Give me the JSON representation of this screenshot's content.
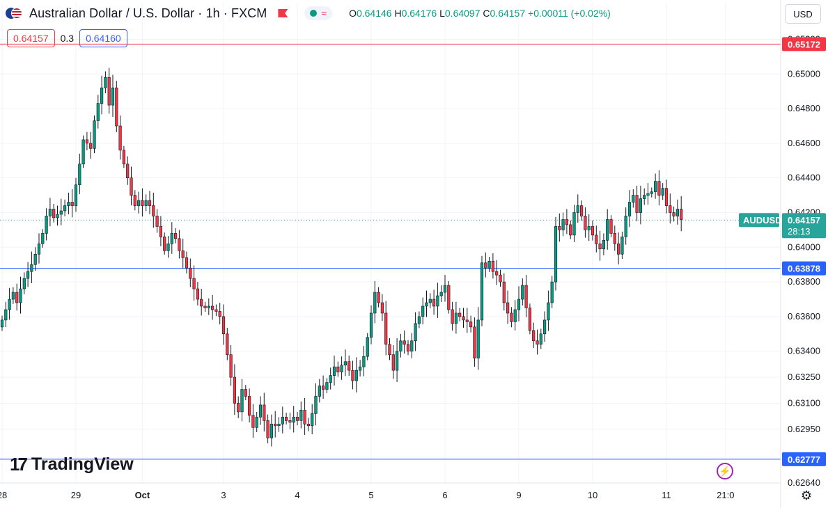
{
  "header": {
    "title": "Australian Dollar / U.S. Dollar · 1h · FXCM",
    "ohlc": {
      "open_label": "O",
      "open": "0.64146",
      "high_label": "H",
      "high": "0.64176",
      "low_label": "L",
      "low": "0.64097",
      "close_label": "C",
      "close": "0.64157",
      "change": "+0.00011 (+0.02%)"
    }
  },
  "trade": {
    "bid": "0.64157",
    "spread": "0.3",
    "ask": "0.64160"
  },
  "currency_button": "USD",
  "logo_text": "TradingView",
  "colors": {
    "up": "#089981",
    "down": "#f23645",
    "resistance": "#f23645",
    "support": "#2962ff",
    "last": "#26a69a"
  },
  "chart_data": {
    "type": "candlestick",
    "title": "Australian Dollar / U.S. Dollar · 1h · FXCM",
    "ylim": [
      0.6264,
      0.6525
    ],
    "y_ticks": [
      0.6264,
      0.6295,
      0.631,
      0.6325,
      0.634,
      0.636,
      0.638,
      0.64,
      0.642,
      0.644,
      0.646,
      0.648,
      0.65,
      0.652
    ],
    "y_tick_labels": [
      "0.62640",
      "0.62950",
      "0.63100",
      "0.63250",
      "0.63400",
      "0.63600",
      "0.63800",
      "0.64000",
      "0.64200",
      "0.64400",
      "0.64600",
      "0.64800",
      "0.65000",
      "0.65200"
    ],
    "x_ticks": [
      {
        "label": "28",
        "bar": 0
      },
      {
        "label": "29",
        "bar": 20
      },
      {
        "label": "Oct",
        "bar": 38
      },
      {
        "label": "3",
        "bar": 60
      },
      {
        "label": "4",
        "bar": 80
      },
      {
        "label": "5",
        "bar": 100
      },
      {
        "label": "6",
        "bar": 120
      },
      {
        "label": "9",
        "bar": 140
      },
      {
        "label": "10",
        "bar": 160
      },
      {
        "label": "11",
        "bar": 180
      },
      {
        "label": "21:0",
        "bar": 196
      }
    ],
    "horizontal_lines": [
      {
        "name": "resistance",
        "value": 0.65172,
        "label": "0.65172",
        "color": "#f23645"
      },
      {
        "name": "support",
        "value": 0.63878,
        "label": "0.63878",
        "color": "#2962ff"
      },
      {
        "name": "support-low",
        "value": 0.62777,
        "label": "0.62777",
        "color": "#2962ff"
      }
    ],
    "last_price": {
      "symbol": "AUDUSD",
      "value": 0.64157,
      "label": "0.64157",
      "countdown": "28:13"
    },
    "closes": [
      0.6358,
      0.6364,
      0.637,
      0.6374,
      0.6368,
      0.6376,
      0.6382,
      0.6386,
      0.639,
      0.6396,
      0.6402,
      0.6408,
      0.6418,
      0.6422,
      0.6417,
      0.6419,
      0.6421,
      0.6424,
      0.6426,
      0.6424,
      0.6436,
      0.6448,
      0.6462,
      0.646,
      0.6457,
      0.6473,
      0.6483,
      0.6492,
      0.6498,
      0.6482,
      0.6492,
      0.647,
      0.6456,
      0.6448,
      0.644,
      0.643,
      0.6424,
      0.6427,
      0.6424,
      0.6427,
      0.6424,
      0.6418,
      0.6412,
      0.6406,
      0.6398,
      0.6402,
      0.6408,
      0.6405,
      0.6398,
      0.6394,
      0.6388,
      0.6382,
      0.6376,
      0.637,
      0.6366,
      0.6365,
      0.6366,
      0.6364,
      0.6363,
      0.636,
      0.635,
      0.6338,
      0.6325,
      0.631,
      0.6305,
      0.6318,
      0.6314,
      0.6303,
      0.6296,
      0.6302,
      0.6309,
      0.63,
      0.629,
      0.6298,
      0.6297,
      0.6298,
      0.6302,
      0.63,
      0.6299,
      0.6302,
      0.63,
      0.6306,
      0.6298,
      0.6297,
      0.6304,
      0.6314,
      0.632,
      0.6318,
      0.6322,
      0.6326,
      0.6331,
      0.6328,
      0.6332,
      0.6334,
      0.6329,
      0.6323,
      0.6329,
      0.6331,
      0.6337,
      0.6348,
      0.6362,
      0.6374,
      0.6368,
      0.6362,
      0.6344,
      0.6338,
      0.6329,
      0.634,
      0.6346,
      0.6344,
      0.634,
      0.6346,
      0.6356,
      0.636,
      0.6366,
      0.6368,
      0.637,
      0.6366,
      0.6372,
      0.6374,
      0.6378,
      0.6364,
      0.6356,
      0.6362,
      0.636,
      0.6358,
      0.6357,
      0.6354,
      0.6336,
      0.6358,
      0.6391,
      0.6388,
      0.6392,
      0.6386,
      0.6384,
      0.638,
      0.6368,
      0.6362,
      0.6357,
      0.6364,
      0.637,
      0.6378,
      0.6365,
      0.6352,
      0.6346,
      0.6344,
      0.635,
      0.6358,
      0.6368,
      0.638,
      0.6412,
      0.641,
      0.6416,
      0.6413,
      0.6407,
      0.642,
      0.6424,
      0.6418,
      0.641,
      0.6412,
      0.6407,
      0.6402,
      0.6399,
      0.6404,
      0.6416,
      0.6408,
      0.6402,
      0.6396,
      0.6406,
      0.6418,
      0.6426,
      0.643,
      0.642,
      0.6428,
      0.643,
      0.6431,
      0.6432,
      0.6438,
      0.643,
      0.6434,
      0.6424,
      0.642,
      0.6418,
      0.6422,
      0.6416
    ]
  }
}
